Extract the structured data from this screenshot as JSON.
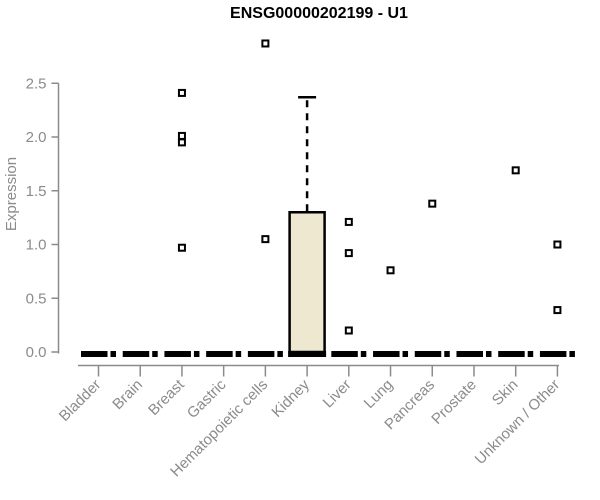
{
  "chart_data": {
    "type": "box",
    "title": "ENSG00000202199 - U1",
    "ylabel": "Expression",
    "xlabel": "",
    "ylim": [
      0,
      2.9
    ],
    "grid": false,
    "legend": null,
    "yticks": [
      {
        "v": 0.0,
        "label": "0.0"
      },
      {
        "v": 0.5,
        "label": "0.5"
      },
      {
        "v": 1.0,
        "label": "1.0"
      },
      {
        "v": 1.5,
        "label": "1.5"
      },
      {
        "v": 2.0,
        "label": "2.0"
      },
      {
        "v": 2.5,
        "label": "2.5"
      }
    ],
    "categories": [
      "Bladder",
      "Brain",
      "Breast",
      "Gastric",
      "Hematopoietic cells",
      "Kidney",
      "Liver",
      "Lung",
      "Pancreas",
      "Prostate",
      "Skin",
      "Unknown / Other"
    ],
    "boxes": [
      {
        "category": "Bladder",
        "q1": 0,
        "median": 0,
        "q3": 0,
        "whisker_low": 0,
        "whisker_high": 0,
        "outliers": []
      },
      {
        "category": "Brain",
        "q1": 0,
        "median": 0,
        "q3": 0,
        "whisker_low": 0,
        "whisker_high": 0,
        "outliers": []
      },
      {
        "category": "Breast",
        "q1": 0,
        "median": 0,
        "q3": 0,
        "whisker_low": 0,
        "whisker_high": 0,
        "outliers": [
          2.41,
          2.01,
          1.95,
          0.97
        ]
      },
      {
        "category": "Gastric",
        "q1": 0,
        "median": 0,
        "q3": 0,
        "whisker_low": 0,
        "whisker_high": 0,
        "outliers": []
      },
      {
        "category": "Hematopoietic cells",
        "q1": 0,
        "median": 0,
        "q3": 0,
        "whisker_low": 0,
        "whisker_high": 0,
        "outliers": [
          2.87,
          1.05
        ]
      },
      {
        "category": "Kidney",
        "q1": 0,
        "median": 0,
        "q3": 1.3,
        "whisker_low": 0,
        "whisker_high": 2.37,
        "outliers": []
      },
      {
        "category": "Liver",
        "q1": 0,
        "median": 0,
        "q3": 0,
        "whisker_low": 0,
        "whisker_high": 0,
        "outliers": [
          1.21,
          0.92,
          0.2
        ]
      },
      {
        "category": "Lung",
        "q1": 0,
        "median": 0,
        "q3": 0,
        "whisker_low": 0,
        "whisker_high": 0,
        "outliers": [
          0.76
        ]
      },
      {
        "category": "Pancreas",
        "q1": 0,
        "median": 0,
        "q3": 0,
        "whisker_low": 0,
        "whisker_high": 0,
        "outliers": [
          1.38
        ]
      },
      {
        "category": "Prostate",
        "q1": 0,
        "median": 0,
        "q3": 0,
        "whisker_low": 0,
        "whisker_high": 0,
        "outliers": []
      },
      {
        "category": "Skin",
        "q1": 0,
        "median": 0,
        "q3": 0,
        "whisker_low": 0,
        "whisker_high": 0,
        "outliers": [
          1.69
        ]
      },
      {
        "category": "Unknown / Other",
        "q1": 0,
        "median": 0,
        "q3": 0,
        "whisker_low": 0,
        "whisker_high": 0,
        "outliers": [
          1.0,
          0.39
        ]
      }
    ],
    "colors": {
      "background": "#ffffff",
      "title": "#000000",
      "axis": "#8b8b8b",
      "tick_label": "#8b8b8b",
      "box_fill": "#ede8cf",
      "box_border": "#000000",
      "median": "#000000",
      "whisker": "#000000",
      "outlier_fill": "#ffffff",
      "outlier_border": "#000000"
    }
  }
}
